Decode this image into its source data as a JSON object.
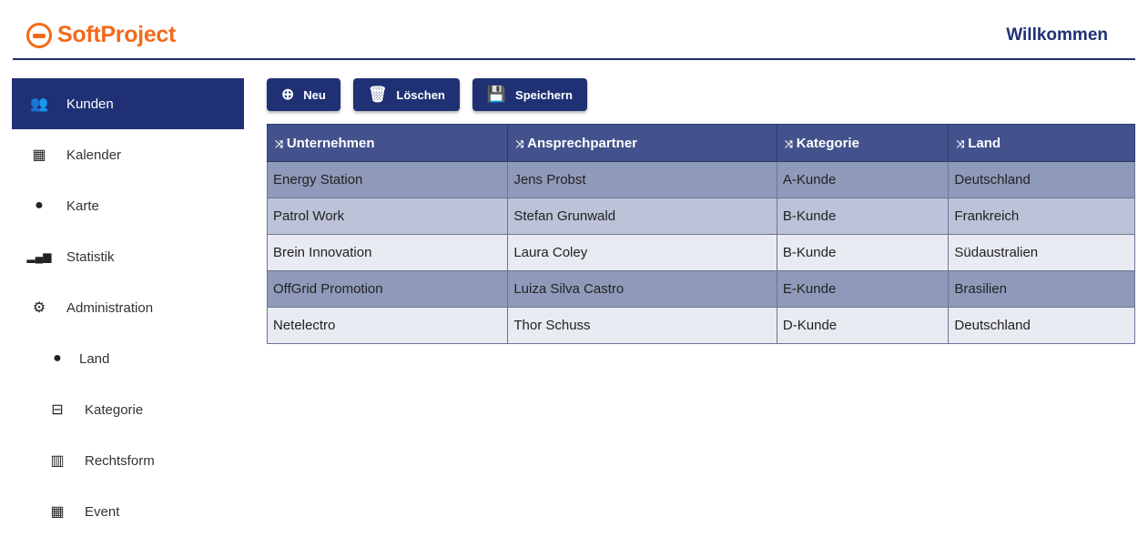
{
  "brand": {
    "name": "SoftProject",
    "color": "#f26a1b"
  },
  "header": {
    "welcome": "Willkommen"
  },
  "sidebar": {
    "items": [
      {
        "label": "Kunden",
        "icon": "people-icon",
        "glyph": "👥",
        "active": true
      },
      {
        "label": "Kalender",
        "icon": "calendar-icon",
        "glyph": "▦"
      },
      {
        "label": "Karte",
        "icon": "globe-icon",
        "glyph": "🌍"
      },
      {
        "label": "Statistik",
        "icon": "signal-bars-icon",
        "glyph": "▂▄▆"
      },
      {
        "label": "Administration",
        "icon": "gears-icon",
        "glyph": "⚙"
      },
      {
        "label": "Land",
        "icon": "globe-icon",
        "glyph": "🌍"
      },
      {
        "label": "Kategorie",
        "icon": "inbox-icon",
        "glyph": "⊟"
      },
      {
        "label": "Rechtsform",
        "icon": "building-icon",
        "glyph": "▥"
      },
      {
        "label": "Event",
        "icon": "calendar-icon",
        "glyph": "▦"
      }
    ]
  },
  "toolbar": {
    "new": "Neu",
    "delete": "Löschen",
    "save": "Speichern"
  },
  "table": {
    "columns": [
      "Unternehmen",
      "Ansprechpartner",
      "Kategorie",
      "Land"
    ],
    "rows": [
      [
        "Energy Station",
        "Jens Probst",
        "A-Kunde",
        "Deutschland"
      ],
      [
        "Patrol Work",
        "Stefan Grunwald",
        "B-Kunde",
        "Frankreich"
      ],
      [
        "Brein Innovation",
        "Laura  Coley",
        "B-Kunde",
        "Südaustralien"
      ],
      [
        "OffGrid Promotion",
        "Luiza Silva Castro",
        "E-Kunde",
        "Brasilien"
      ],
      [
        "Netelectro",
        "Thor Schuss",
        "D-Kunde",
        "Deutschland"
      ]
    ]
  },
  "colors": {
    "primary": "#1f3174",
    "header": "#43528c"
  }
}
